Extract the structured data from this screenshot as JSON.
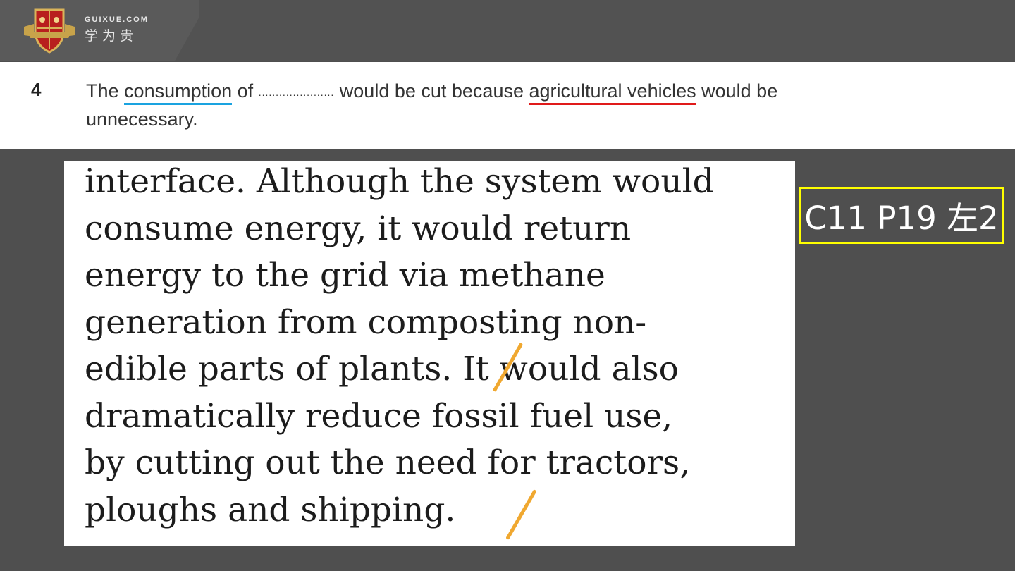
{
  "header": {
    "brand_en": "GUIXUE.COM",
    "brand_cn": "学为贵",
    "logo_icon": "crest-shield-icon"
  },
  "question": {
    "number": "4",
    "text_1": "The",
    "word_1": "consumption",
    "text_2": "of",
    "blank": "......................",
    "text_3": "would be cut because",
    "word_2": "agricultural vehicles",
    "text_4": "would be",
    "text_5": "unnecessary.",
    "underline_colors": [
      "#1aa3e0",
      "#e01a1a"
    ]
  },
  "passage": {
    "lines": [
      "interface. Although the system would",
      "consume energy, it would return",
      "energy to the grid via methane",
      "generation from composting non-",
      "edible parts of plants. It would also",
      "dramatically reduce fossil fuel use,",
      "by cutting out the need for tractors,",
      "ploughs and shipping."
    ],
    "divider_color": "#f0a830"
  },
  "reference": {
    "label": "C11 P19 左2",
    "border_color": "#ffff00"
  }
}
